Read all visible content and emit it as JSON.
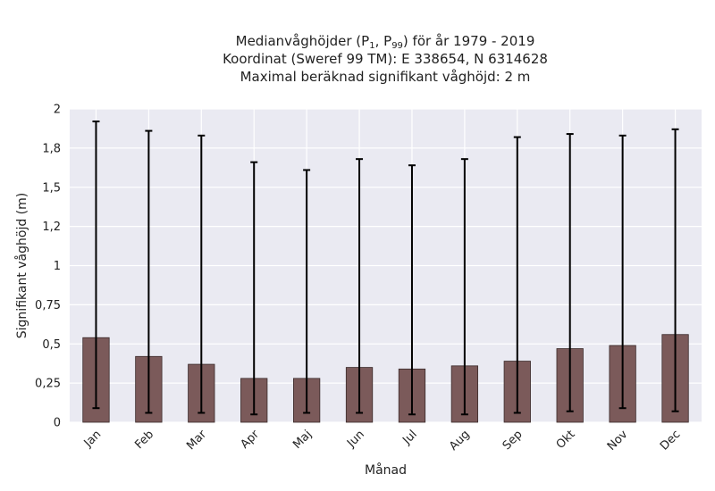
{
  "chart_data": {
    "type": "bar",
    "title_lines": [
      "Medianvåghöjder (P1, P99) för år 1979 - 2019",
      "Koordinat (Sweref 99 TM): E 338654, N 6314628",
      "Maximal beräknad signifikant våghöjd: 2 m"
    ],
    "xlabel": "Månad",
    "ylabel": "Signifikant våghöjd (m)",
    "categories": [
      "Jan",
      "Feb",
      "Mar",
      "Apr",
      "Maj",
      "Jun",
      "Jul",
      "Aug",
      "Sep",
      "Okt",
      "Nov",
      "Dec"
    ],
    "series": [
      {
        "values": [
          0.54,
          0.42,
          0.37,
          0.28,
          0.28,
          0.35,
          0.34,
          0.36,
          0.39,
          0.47,
          0.49,
          0.56
        ],
        "p1": [
          0.09,
          0.06,
          0.06,
          0.05,
          0.06,
          0.06,
          0.05,
          0.05,
          0.06,
          0.07,
          0.09,
          0.07
        ],
        "p99": [
          1.92,
          1.86,
          1.83,
          1.66,
          1.61,
          1.68,
          1.64,
          1.68,
          1.82,
          1.84,
          1.83,
          1.87
        ]
      }
    ],
    "ylim": [
      0,
      2
    ],
    "yticks": [
      0,
      0.25,
      0.5,
      0.75,
      1,
      1.25,
      1.5,
      1.75,
      2
    ],
    "ytick_labels": [
      "0",
      "0,25",
      "0,5",
      "0,75",
      "1",
      "1,2",
      "1,5",
      "1,8",
      "2"
    ],
    "grid": true,
    "colors": {
      "bar": "#7b5a5a",
      "bar_edge": "#3a2a2a",
      "plot_bg": "#eaeaf2",
      "grid": "#ffffff",
      "error": "#000000"
    }
  }
}
